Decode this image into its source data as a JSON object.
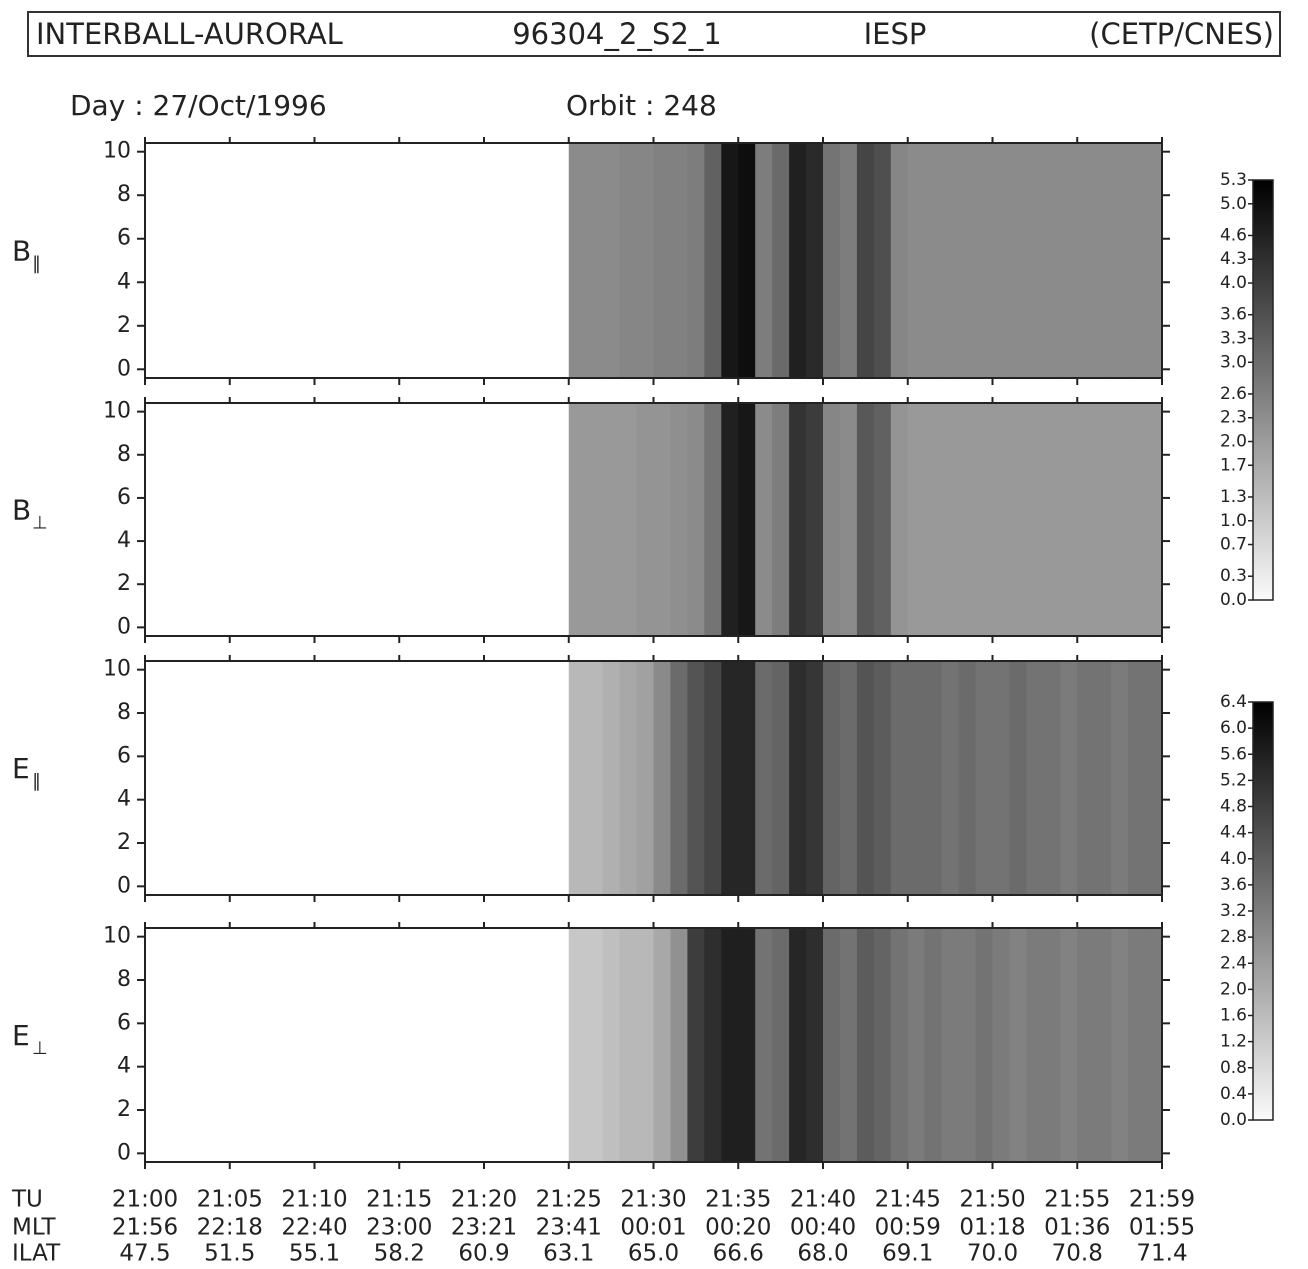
{
  "header": {
    "instrument": "INTERBALL-AURORAL",
    "file": "96304_2_S2_1",
    "experiment": "IESP",
    "institution": "(CETP/CNES)"
  },
  "day": "Day : 27/Oct/1996",
  "orbit": "Orbit : 248",
  "time_axis": {
    "name": "TU",
    "xlim": [
      0,
      60
    ],
    "xticks": [
      {
        "value": 0,
        "label": "21:00"
      },
      {
        "value": 5,
        "label": "21:05"
      },
      {
        "value": 10,
        "label": "21:10"
      },
      {
        "value": 15,
        "label": "21:15"
      },
      {
        "value": 20,
        "label": "21:20"
      },
      {
        "value": 25,
        "label": "21:25"
      },
      {
        "value": 30,
        "label": "21:30"
      },
      {
        "value": 35,
        "label": "21:35"
      },
      {
        "value": 40,
        "label": "21:40"
      },
      {
        "value": 45,
        "label": "21:45"
      },
      {
        "value": 50,
        "label": "21:50"
      },
      {
        "value": 55,
        "label": "21:55"
      },
      {
        "value": 60,
        "label": "21:59"
      }
    ],
    "rows": [
      {
        "name": "MLT",
        "labels": [
          "21:56",
          "22:18",
          "22:40",
          "23:00",
          "23:21",
          "23:41",
          "00:01",
          "00:20",
          "00:40",
          "00:59",
          "01:18",
          "01:36",
          "01:55"
        ]
      },
      {
        "name": "ILAT",
        "labels": [
          "47.5",
          "51.5",
          "55.1",
          "58.2",
          "60.9",
          "63.1",
          "65.0",
          "66.6",
          "68.0",
          "69.1",
          "70.0",
          "70.8",
          "71.4"
        ]
      }
    ]
  },
  "chart_data": [
    {
      "type": "spectrogram",
      "colorscale": "gray",
      "zlim": [
        0,
        5.3
      ],
      "zticks": [
        {
          "value": 0,
          "label": "0.0"
        },
        0.3,
        0.7,
        {
          "value": 1,
          "label": "1.0"
        },
        1.3,
        1.7,
        {
          "value": 2,
          "label": "2.0"
        },
        2.3,
        2.6,
        {
          "value": 3,
          "label": "3.0"
        },
        3.3,
        3.6,
        {
          "value": 4,
          "label": "4.0"
        },
        4.3,
        4.6,
        {
          "value": 5,
          "label": "5.0"
        },
        5.3
      ],
      "panels": [
        {
          "ylabel": "B",
          "ylabel_subscript": "∥",
          "ylim": [
            -0.4,
            10.4
          ],
          "yticks": [
            0,
            2,
            4,
            6,
            8,
            10
          ],
          "bins": [
            25,
            26,
            27,
            28,
            29,
            30,
            31,
            32,
            33,
            34,
            35,
            36,
            37,
            38,
            39,
            40,
            41,
            42,
            43,
            44,
            45,
            46,
            47,
            48,
            49,
            50,
            51,
            52,
            53,
            54,
            55,
            56,
            57,
            58,
            59,
            60
          ],
          "values": [
            2.3,
            2.3,
            2.3,
            2.4,
            2.4,
            2.5,
            2.5,
            2.6,
            3.2,
            4.8,
            5.0,
            2.6,
            3.0,
            4.6,
            4.4,
            2.8,
            2.6,
            3.8,
            3.6,
            2.4,
            2.3,
            2.3,
            2.3,
            2.3,
            2.3,
            2.3,
            2.3,
            2.3,
            2.3,
            2.3,
            2.3,
            2.3,
            2.3,
            2.3,
            2.3
          ]
        },
        {
          "ylabel": "B",
          "ylabel_subscript": "⊥",
          "ylim": [
            -0.4,
            10.4
          ],
          "yticks": [
            0,
            2,
            4,
            6,
            8,
            10
          ],
          "bins": [
            25,
            26,
            27,
            28,
            29,
            30,
            31,
            32,
            33,
            34,
            35,
            36,
            37,
            38,
            39,
            40,
            41,
            42,
            43,
            44,
            45,
            46,
            47,
            48,
            49,
            50,
            51,
            52,
            53,
            54,
            55,
            56,
            57,
            58,
            59,
            60
          ],
          "values": [
            2.0,
            2.0,
            2.0,
            2.0,
            2.1,
            2.1,
            2.2,
            2.3,
            2.8,
            4.6,
            4.8,
            2.3,
            2.6,
            4.2,
            4.0,
            2.4,
            2.3,
            3.4,
            3.2,
            2.1,
            2.0,
            2.0,
            2.0,
            2.0,
            2.0,
            2.0,
            2.0,
            2.0,
            2.0,
            2.0,
            2.0,
            2.0,
            2.0,
            2.0,
            2.0
          ]
        }
      ]
    },
    {
      "type": "spectrogram",
      "colorscale": "gray",
      "zlim": [
        0,
        6.4
      ],
      "zticks": [
        {
          "value": 0,
          "label": "0.0"
        },
        0.4,
        0.8,
        1.2,
        1.6,
        {
          "value": 2,
          "label": "2.0"
        },
        2.4,
        2.8,
        3.2,
        3.6,
        {
          "value": 4,
          "label": "4.0"
        },
        4.4,
        4.8,
        5.2,
        5.6,
        {
          "value": 6,
          "label": "6.0"
        },
        6.4
      ],
      "panels": [
        {
          "ylabel": "E",
          "ylabel_subscript": "∥",
          "ylim": [
            -0.4,
            10.4
          ],
          "yticks": [
            0,
            2,
            4,
            6,
            8,
            10
          ],
          "bins": [
            25,
            26,
            27,
            28,
            29,
            30,
            31,
            32,
            33,
            34,
            35,
            36,
            37,
            38,
            39,
            40,
            41,
            42,
            43,
            44,
            45,
            46,
            47,
            48,
            49,
            50,
            51,
            52,
            53,
            54,
            55,
            56,
            57,
            58,
            59,
            60
          ],
          "values": [
            1.6,
            1.6,
            1.8,
            2.0,
            2.2,
            2.8,
            3.6,
            4.2,
            4.6,
            5.4,
            5.4,
            3.6,
            3.8,
            5.2,
            5.0,
            3.8,
            3.6,
            4.2,
            4.0,
            3.6,
            3.6,
            3.6,
            3.4,
            3.6,
            3.4,
            3.4,
            3.6,
            3.4,
            3.4,
            3.2,
            3.4,
            3.4,
            3.2,
            3.4,
            3.4
          ]
        },
        {
          "ylabel": "E",
          "ylabel_subscript": "⊥",
          "ylim": [
            -0.4,
            10.4
          ],
          "yticks": [
            0,
            2,
            4,
            6,
            8,
            10
          ],
          "bins": [
            25,
            26,
            27,
            28,
            29,
            30,
            31,
            32,
            33,
            34,
            35,
            36,
            37,
            38,
            39,
            40,
            41,
            42,
            43,
            44,
            45,
            46,
            47,
            48,
            49,
            50,
            51,
            52,
            53,
            54,
            55,
            56,
            57,
            58,
            59,
            60
          ],
          "values": [
            1.2,
            1.2,
            1.4,
            1.6,
            1.6,
            2.0,
            2.6,
            4.8,
            5.2,
            5.6,
            5.6,
            3.4,
            3.6,
            5.4,
            5.2,
            3.6,
            3.4,
            4.0,
            3.8,
            3.4,
            3.2,
            3.4,
            3.2,
            3.2,
            3.4,
            3.2,
            3.0,
            3.2,
            3.2,
            3.0,
            3.2,
            3.2,
            3.0,
            3.2,
            3.2
          ]
        }
      ]
    }
  ]
}
